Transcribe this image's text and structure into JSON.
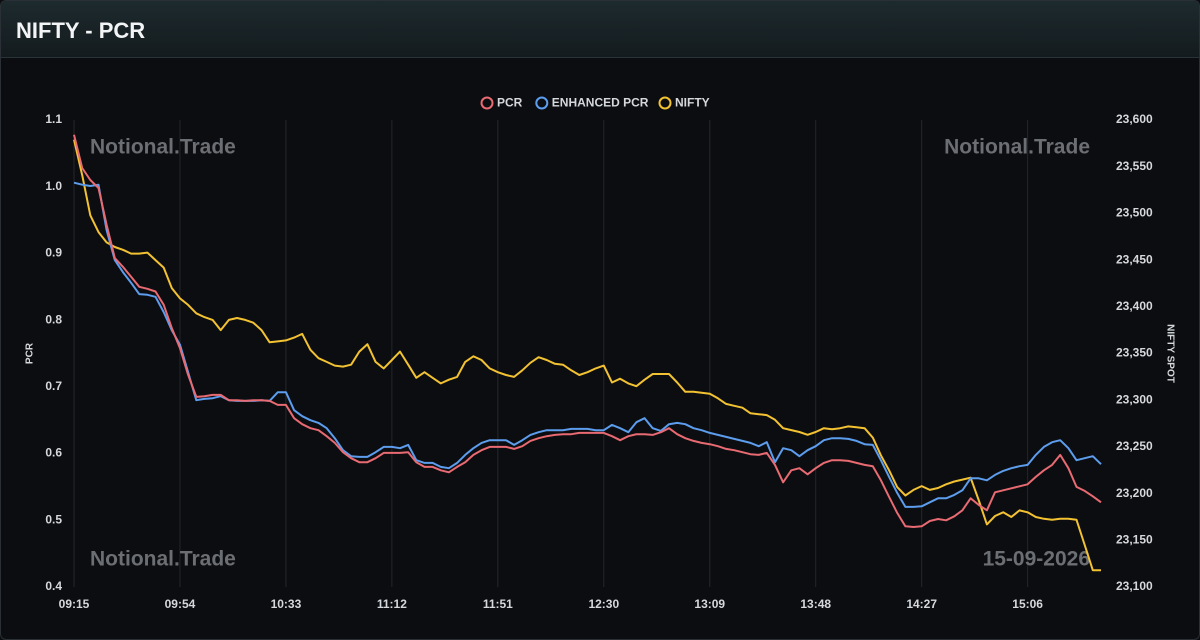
{
  "chart_data": {
    "type": "line",
    "title": "NIFTY - PCR",
    "ylabel": "PCR",
    "y2label": "NIFTY SPOT",
    "watermarks": [
      "Notional.Trade",
      "Notional.Trade",
      "Notional.Trade",
      "15-09-2026"
    ],
    "grid": "x",
    "legend": "top",
    "x": [
      "09:15",
      "09:18",
      "09:21",
      "09:24",
      "09:27",
      "09:30",
      "09:33",
      "09:36",
      "09:39",
      "09:42",
      "09:45",
      "09:48",
      "09:51",
      "09:54",
      "09:57",
      "10:00",
      "10:03",
      "10:06",
      "10:09",
      "10:12",
      "10:15",
      "10:18",
      "10:21",
      "10:24",
      "10:27",
      "10:30",
      "10:33",
      "10:36",
      "10:39",
      "10:42",
      "10:45",
      "10:48",
      "10:51",
      "10:54",
      "10:57",
      "11:00",
      "11:03",
      "11:06",
      "11:09",
      "11:12",
      "11:15",
      "11:18",
      "11:21",
      "11:24",
      "11:27",
      "11:30",
      "11:33",
      "11:36",
      "11:39",
      "11:42",
      "11:45",
      "11:48",
      "11:51",
      "11:54",
      "11:57",
      "12:00",
      "12:03",
      "12:06",
      "12:09",
      "12:12",
      "12:15",
      "12:18",
      "12:21",
      "12:24",
      "12:27",
      "12:30",
      "12:33",
      "12:36",
      "12:39",
      "12:42",
      "12:45",
      "12:48",
      "12:51",
      "12:54",
      "12:57",
      "13:00",
      "13:03",
      "13:06",
      "13:09",
      "13:12",
      "13:15",
      "13:18",
      "13:21",
      "13:24",
      "13:27",
      "13:30",
      "13:33",
      "13:36",
      "13:39",
      "13:42",
      "13:45",
      "13:48",
      "13:51",
      "13:54",
      "13:57",
      "14:00",
      "14:03",
      "14:06",
      "14:09",
      "14:12",
      "14:15",
      "14:18",
      "14:21",
      "14:24",
      "14:27",
      "14:30",
      "14:33",
      "14:36",
      "14:39",
      "14:42",
      "14:45",
      "14:48",
      "14:51",
      "14:54",
      "14:57",
      "15:00",
      "15:03",
      "15:06",
      "15:09",
      "15:12",
      "15:15",
      "15:18",
      "15:21",
      "15:24",
      "15:27",
      "15:30",
      "15:33"
    ],
    "xticks": [
      "09:15",
      "09:54",
      "10:33",
      "11:12",
      "11:51",
      "12:30",
      "13:09",
      "13:48",
      "14:27",
      "15:06"
    ],
    "ylim": [
      0.4,
      1.1
    ],
    "yticks": [
      0.4,
      0.5,
      0.6,
      0.7,
      0.8,
      0.9,
      {
        "value": 1,
        "label": "1.0"
      },
      1.1
    ],
    "y2lim": [
      23100,
      23600
    ],
    "y2ticks": [
      {
        "value": 23100,
        "label": "23,100"
      },
      {
        "value": 23150,
        "label": "23,150"
      },
      {
        "value": 23200,
        "label": "23,200"
      },
      {
        "value": 23250,
        "label": "23,250"
      },
      {
        "value": 23300,
        "label": "23,300"
      },
      {
        "value": 23350,
        "label": "23,350"
      },
      {
        "value": 23400,
        "label": "23,400"
      },
      {
        "value": 23450,
        "label": "23,450"
      },
      {
        "value": 23500,
        "label": "23,500"
      },
      {
        "value": 23550,
        "label": "23,550"
      },
      {
        "value": 23600,
        "label": "23,600"
      }
    ],
    "series": [
      {
        "name": "PCR",
        "color": "#e86a72",
        "axis": "y",
        "values": [
          1.078,
          1.028,
          1.01,
          0.998,
          0.943,
          0.893,
          0.88,
          0.865,
          0.85,
          0.847,
          0.843,
          0.823,
          0.788,
          0.758,
          0.718,
          0.685,
          0.686,
          0.688,
          0.688,
          0.68,
          0.68,
          0.679,
          0.68,
          0.68,
          0.679,
          0.673,
          0.673,
          0.653,
          0.644,
          0.638,
          0.635,
          0.626,
          0.616,
          0.602,
          0.593,
          0.587,
          0.587,
          0.593,
          0.601,
          0.601,
          0.601,
          0.602,
          0.587,
          0.58,
          0.58,
          0.575,
          0.572,
          0.58,
          0.587,
          0.598,
          0.605,
          0.61,
          0.61,
          0.61,
          0.607,
          0.611,
          0.619,
          0.623,
          0.626,
          0.628,
          0.629,
          0.629,
          0.631,
          0.631,
          0.631,
          0.631,
          0.626,
          0.62,
          0.626,
          0.629,
          0.629,
          0.628,
          0.632,
          0.638,
          0.629,
          0.623,
          0.619,
          0.616,
          0.614,
          0.611,
          0.607,
          0.605,
          0.602,
          0.599,
          0.598,
          0.601,
          0.583,
          0.557,
          0.575,
          0.578,
          0.569,
          0.578,
          0.586,
          0.59,
          0.59,
          0.589,
          0.586,
          0.583,
          0.581,
          0.56,
          0.535,
          0.511,
          0.491,
          0.49,
          0.491,
          0.499,
          0.502,
          0.5,
          0.506,
          0.515,
          0.533,
          0.523,
          0.515,
          0.542,
          0.545,
          0.548,
          0.551,
          0.554,
          0.565,
          0.575,
          0.583,
          0.598,
          0.578,
          0.55,
          0.544,
          0.536,
          0.527
        ]
      },
      {
        "name": "ENHANCED PCR",
        "color": "#5c9ded",
        "axis": "y",
        "values": [
          1.006,
          1.003,
          1.001,
          1.003,
          0.935,
          0.89,
          0.872,
          0.856,
          0.839,
          0.838,
          0.835,
          0.812,
          0.785,
          0.763,
          0.722,
          0.68,
          0.682,
          0.683,
          0.686,
          0.68,
          0.679,
          0.679,
          0.679,
          0.68,
          0.679,
          0.692,
          0.692,
          0.665,
          0.656,
          0.65,
          0.646,
          0.638,
          0.623,
          0.605,
          0.596,
          0.595,
          0.595,
          0.602,
          0.61,
          0.61,
          0.608,
          0.613,
          0.59,
          0.586,
          0.586,
          0.58,
          0.578,
          0.586,
          0.598,
          0.608,
          0.616,
          0.62,
          0.62,
          0.62,
          0.613,
          0.62,
          0.628,
          0.632,
          0.635,
          0.635,
          0.635,
          0.637,
          0.637,
          0.637,
          0.635,
          0.635,
          0.643,
          0.638,
          0.632,
          0.647,
          0.653,
          0.638,
          0.634,
          0.644,
          0.646,
          0.644,
          0.638,
          0.635,
          0.631,
          0.628,
          0.625,
          0.622,
          0.619,
          0.616,
          0.611,
          0.617,
          0.587,
          0.608,
          0.605,
          0.596,
          0.605,
          0.611,
          0.62,
          0.623,
          0.623,
          0.622,
          0.619,
          0.614,
          0.613,
          0.59,
          0.565,
          0.541,
          0.52,
          0.52,
          0.521,
          0.527,
          0.533,
          0.533,
          0.538,
          0.545,
          0.563,
          0.563,
          0.56,
          0.568,
          0.574,
          0.578,
          0.581,
          0.583,
          0.598,
          0.61,
          0.617,
          0.62,
          0.608,
          0.59,
          0.593,
          0.596,
          0.584
        ]
      },
      {
        "name": "NIFTY",
        "color": "#f2c233",
        "axis": "y2",
        "values": [
          23579,
          23541,
          23498,
          23480,
          23469,
          23464,
          23461,
          23457,
          23457,
          23458,
          23450,
          23442,
          23420,
          23409,
          23402,
          23393,
          23389,
          23386,
          23375,
          23386,
          23388,
          23386,
          23383,
          23375,
          23362,
          23363,
          23364,
          23367,
          23371,
          23354,
          23345,
          23341,
          23337,
          23336,
          23338,
          23352,
          23360,
          23341,
          23334,
          23343,
          23352,
          23338,
          23324,
          23330,
          23324,
          23318,
          23322,
          23325,
          23341,
          23347,
          23343,
          23334,
          23330,
          23327,
          23325,
          23332,
          23340,
          23346,
          23343,
          23339,
          23338,
          23332,
          23327,
          23330,
          23334,
          23337,
          23319,
          23323,
          23318,
          23315,
          23322,
          23328,
          23328,
          23328,
          23319,
          23309,
          23309,
          23308,
          23307,
          23302,
          23296,
          23294,
          23292,
          23286,
          23285,
          23284,
          23279,
          23270,
          23268,
          23266,
          23263,
          23266,
          23270,
          23269,
          23270,
          23272,
          23271,
          23270,
          23260,
          23241,
          23225,
          23207,
          23198,
          23204,
          23208,
          23204,
          23206,
          23210,
          23213,
          23215,
          23217,
          23193,
          23167,
          23176,
          23180,
          23175,
          23182,
          23180,
          23175,
          23173,
          23172,
          23173,
          23173,
          23172,
          23145,
          23118,
          23118
        ]
      }
    ]
  }
}
